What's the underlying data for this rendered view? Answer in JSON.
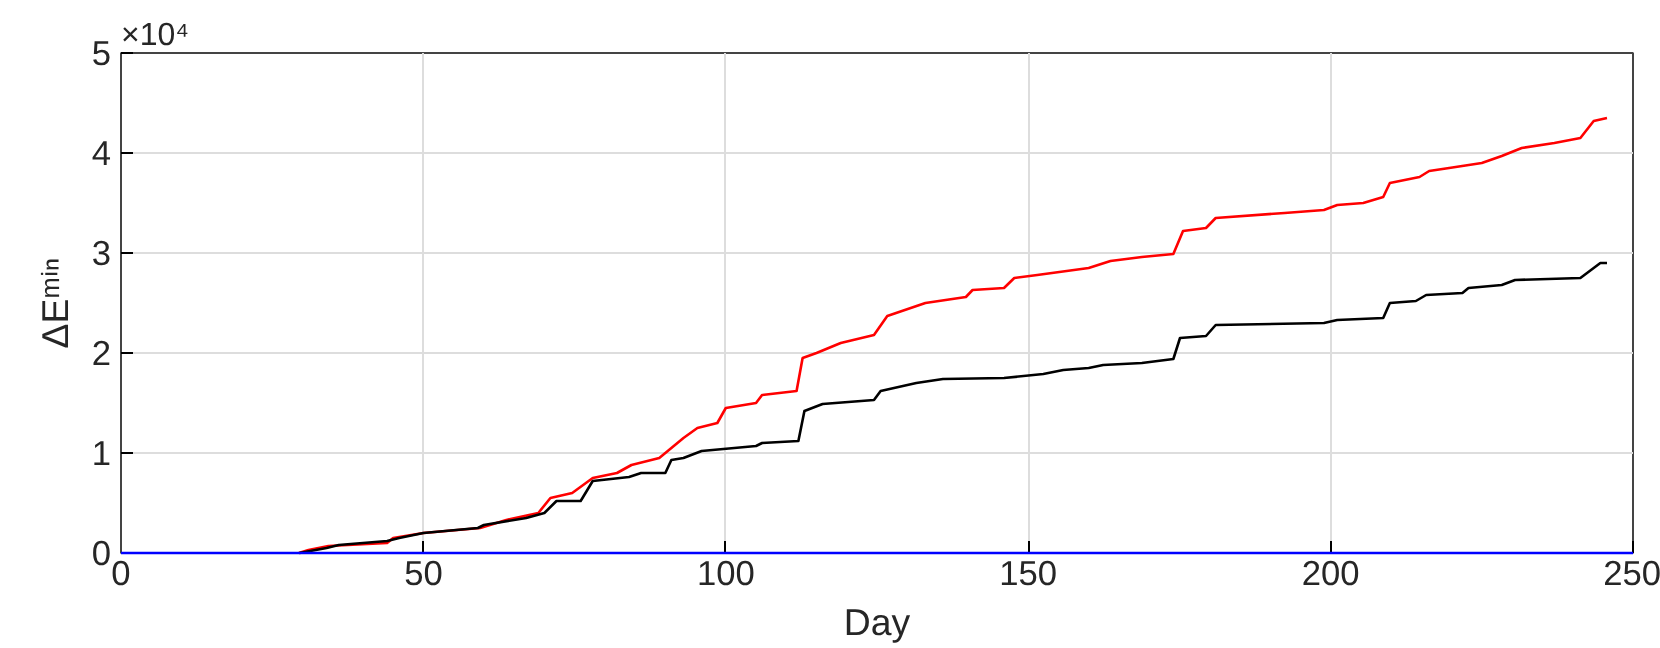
{
  "chart_data": {
    "type": "line",
    "xlabel": "Day",
    "ylabel": "ΔEᵐⁱⁿ",
    "annotations": [
      "×10⁴"
    ],
    "xlim": [
      0,
      250
    ],
    "ylim": [
      0,
      5
    ],
    "xticks": [
      0,
      50,
      100,
      150,
      200,
      250
    ],
    "yticks": [
      0,
      1,
      2,
      3,
      4,
      5
    ],
    "grid": true,
    "marker": "none",
    "line_style": "solid",
    "series": [
      {
        "color": "#ff0000",
        "x": [
          29.4,
          31,
          34.3,
          44,
          45,
          50,
          59.4,
          63.7,
          69,
          71,
          74.6,
          78,
          82,
          84.4,
          89,
          91,
          93,
          95.3,
          98.6,
          100,
          105,
          106,
          111.7,
          112.7,
          115,
          119,
          124.5,
          126.7,
          133,
          139.7,
          140.8,
          146,
          147.7,
          151.5,
          160,
          163.6,
          168.8,
          174,
          175.6,
          179.4,
          181,
          192.4,
          198.9,
          201.1,
          205.4,
          208.7,
          209.8,
          214.7,
          216.3,
          219.6,
          225,
          228.3,
          231.6,
          237,
          241.3,
          243.5,
          245.7
        ],
        "values": [
          0,
          0.03,
          0.07,
          0.1,
          0.15,
          0.2,
          0.25,
          0.33,
          0.4,
          0.55,
          0.6,
          0.75,
          0.8,
          0.88,
          0.95,
          1.05,
          1.15,
          1.25,
          1.3,
          1.45,
          1.5,
          1.58,
          1.62,
          1.95,
          2.0,
          2.1,
          2.18,
          2.37,
          2.5,
          2.56,
          2.63,
          2.65,
          2.75,
          2.78,
          2.85,
          2.92,
          2.96,
          2.99,
          3.22,
          3.25,
          3.35,
          3.4,
          3.43,
          3.48,
          3.5,
          3.56,
          3.7,
          3.76,
          3.82,
          3.85,
          3.9,
          3.97,
          4.05,
          4.1,
          4.15,
          4.32,
          4.35
        ]
      },
      {
        "color": "#000000",
        "x": [
          29.5,
          34,
          36,
          44,
          46,
          50,
          59,
          60,
          67,
          70,
          72,
          76,
          78,
          84,
          86,
          90,
          91,
          93,
          96,
          105,
          106,
          112,
          113,
          116,
          124.5,
          125.6,
          131.5,
          135.9,
          146,
          152.5,
          155.8,
          160,
          162.4,
          168.8,
          174,
          175.1,
          179.4,
          181,
          198.9,
          201.1,
          208.7,
          209.8,
          214.1,
          215.8,
          221.8,
          222.8,
          228.3,
          230.5,
          241.3,
          243.5,
          244.6,
          245.7
        ],
        "values": [
          0,
          0.05,
          0.08,
          0.12,
          0.15,
          0.2,
          0.25,
          0.28,
          0.35,
          0.4,
          0.52,
          0.52,
          0.72,
          0.76,
          0.8,
          0.8,
          0.93,
          0.95,
          1.02,
          1.07,
          1.1,
          1.12,
          1.42,
          1.49,
          1.53,
          1.62,
          1.7,
          1.74,
          1.75,
          1.79,
          1.83,
          1.85,
          1.88,
          1.9,
          1.94,
          2.15,
          2.17,
          2.28,
          2.3,
          2.33,
          2.35,
          2.5,
          2.52,
          2.58,
          2.6,
          2.65,
          2.68,
          2.73,
          2.75,
          2.85,
          2.9,
          2.9
        ]
      },
      {
        "color": "#0000ff",
        "x": [
          0,
          250
        ],
        "values": [
          0,
          0
        ]
      }
    ]
  }
}
